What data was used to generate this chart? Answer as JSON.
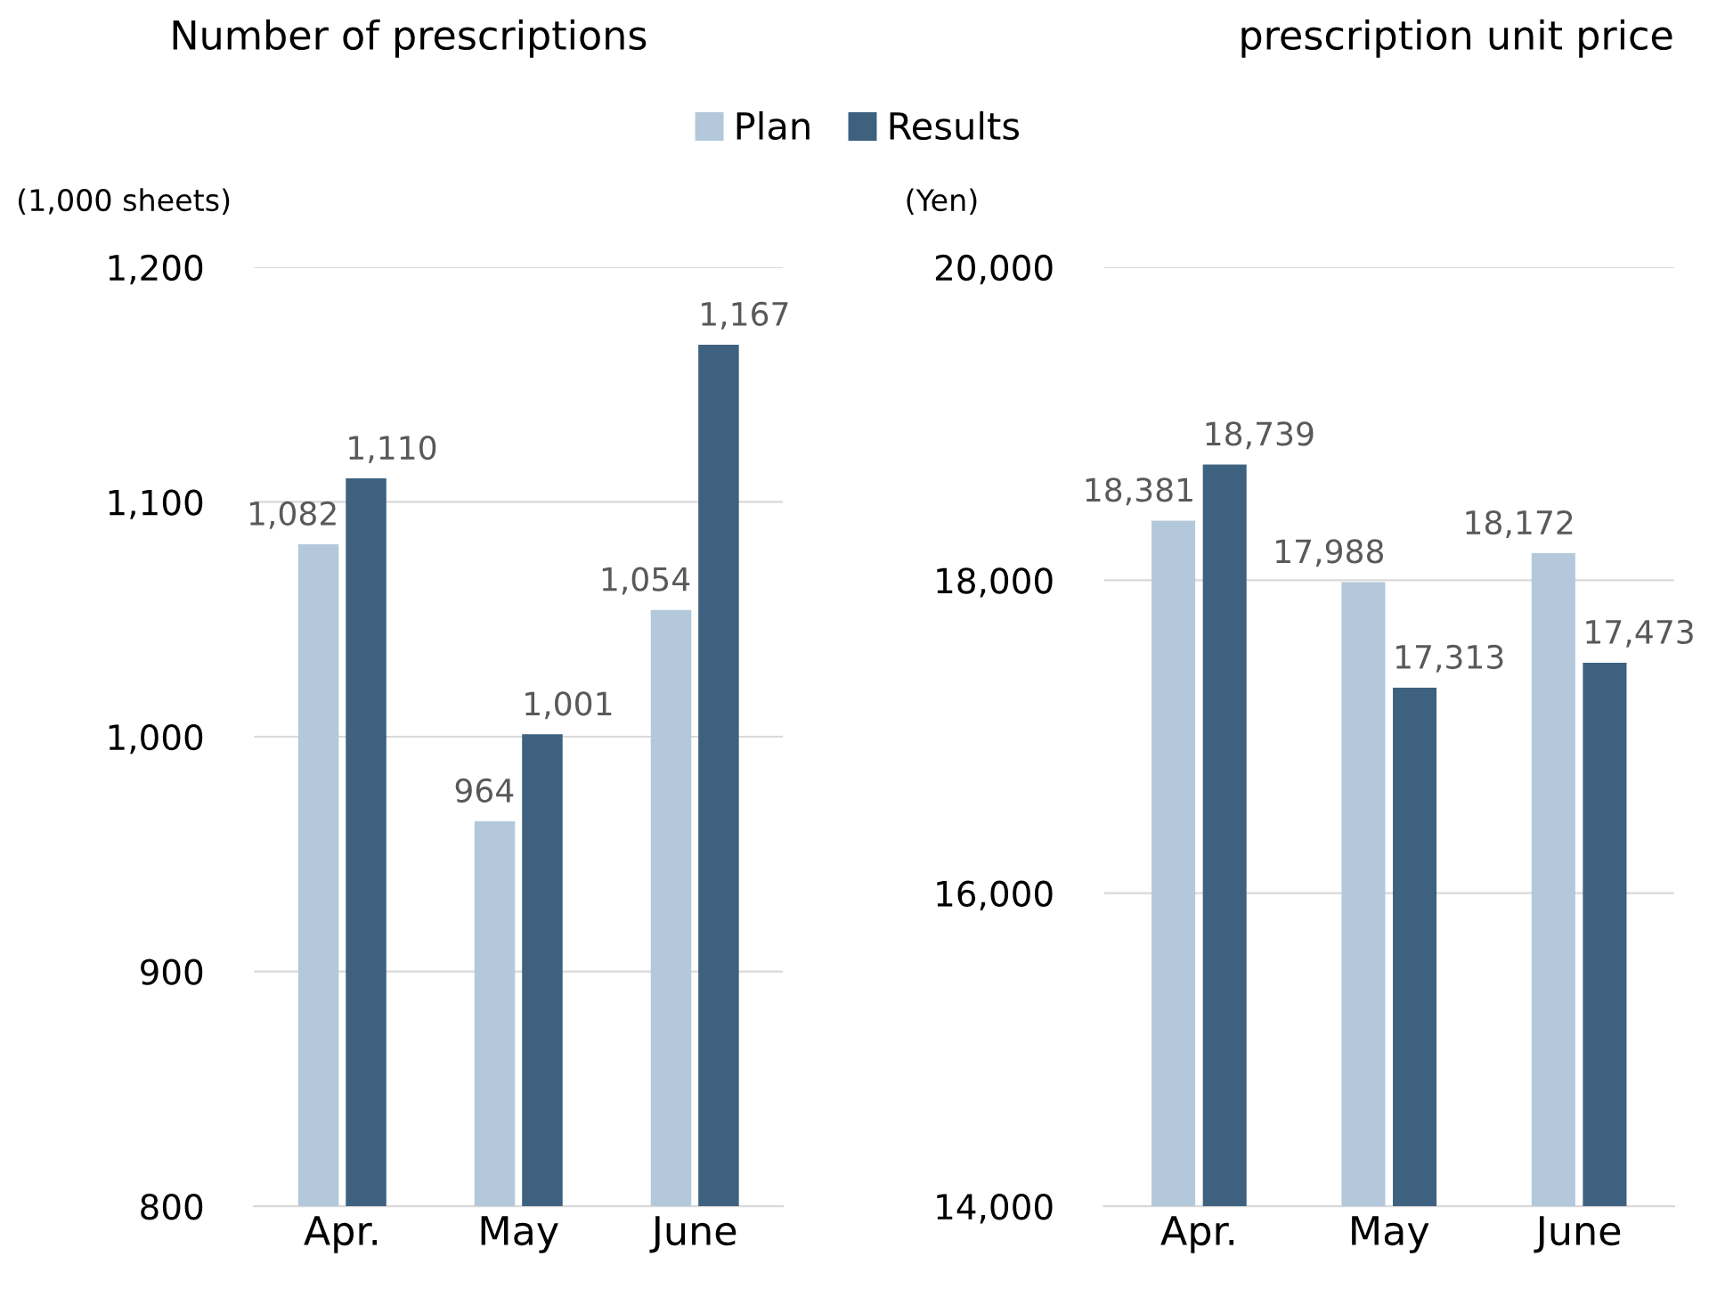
{
  "chart_data": [
    {
      "type": "bar",
      "title": "Number of prescriptions",
      "ylabel": "(1,000 sheets)",
      "categories": [
        "Apr.",
        "May",
        "June"
      ],
      "series": [
        {
          "name": "Plan",
          "color": "#b3c8db",
          "values": [
            1082,
            964,
            1054
          ],
          "value_labels": [
            "1,082",
            "964",
            "1,054"
          ]
        },
        {
          "name": "Results",
          "color": "#3e6180",
          "values": [
            1110,
            1001,
            1167
          ],
          "value_labels": [
            "1,110",
            "1,001",
            "1,167"
          ]
        }
      ],
      "ylim": [
        800,
        1200
      ],
      "yticks": [
        800,
        900,
        {
          "value": 1000,
          "label": "1,000"
        },
        {
          "value": 1100,
          "label": "1,100"
        },
        {
          "value": 1200,
          "label": "1,200"
        }
      ],
      "grid": "y",
      "legend": "top"
    },
    {
      "type": "bar",
      "title": "prescription unit price",
      "ylabel": "(Yen)",
      "categories": [
        "Apr.",
        "May",
        "June"
      ],
      "series": [
        {
          "color": "#b3c8db",
          "values": [
            18381,
            17988,
            18172
          ],
          "value_labels": [
            "18,381",
            "17,988",
            "18,172"
          ]
        },
        {
          "color": "#3e6180",
          "values": [
            18739,
            17313,
            17473
          ],
          "value_labels": [
            "18,739",
            "17,313",
            "17,473"
          ]
        }
      ],
      "ylim": [
        14000,
        20000
      ],
      "yticks": [
        {
          "value": 14000,
          "label": "14,000"
        },
        {
          "value": 16000,
          "label": "16,000"
        },
        {
          "value": 18000,
          "label": "18,000"
        },
        {
          "value": 20000,
          "label": "20,000"
        }
      ],
      "grid": "y"
    }
  ]
}
